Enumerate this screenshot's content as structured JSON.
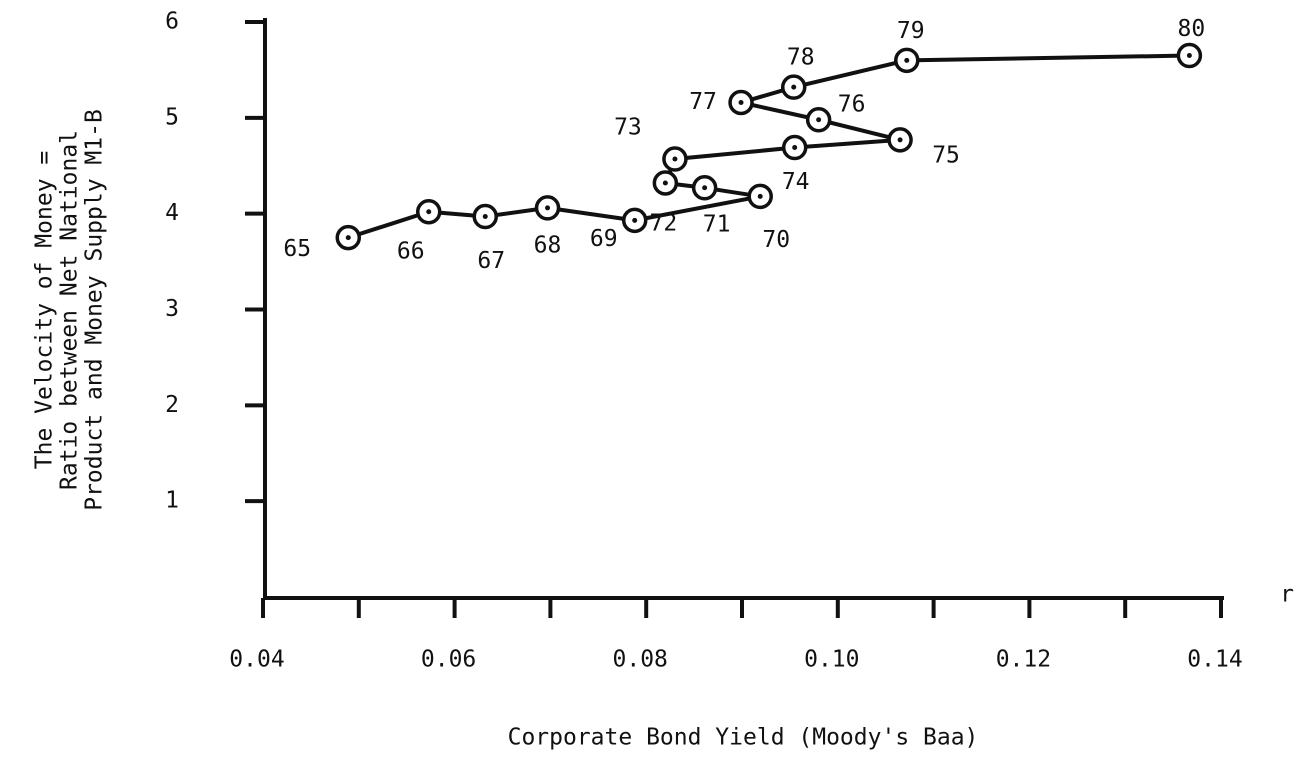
{
  "chart_data": {
    "type": "line",
    "x_label": "Corporate Bond Yield (Moody's Baa)",
    "y_label": [
      "The Velocity of Money =",
      "Ratio between Net National",
      "Product and Money Supply M1-B"
    ],
    "x_axis_symbol": "r",
    "point_labels": [
      "65",
      "66",
      "67",
      "68",
      "69",
      "70",
      "71",
      "72",
      "73",
      "74",
      "75",
      "76",
      "77",
      "78",
      "79",
      "80"
    ],
    "x": [
      0.0489,
      0.0573,
      0.0632,
      0.0697,
      0.0788,
      0.0919,
      0.0861,
      0.082,
      0.083,
      0.0955,
      0.1065,
      0.098,
      0.0899,
      0.0954,
      0.1072,
      0.1367
    ],
    "values": [
      3.75,
      4.02,
      3.97,
      4.06,
      3.93,
      4.18,
      4.27,
      4.32,
      4.57,
      4.69,
      4.77,
      4.98,
      5.16,
      5.32,
      5.6,
      5.65
    ],
    "color": "#111111",
    "xlim": [
      0.04,
      0.14
    ],
    "xticks": [
      0.04,
      0.06,
      0.08,
      {
        "value": 0.1,
        "label": "0.10"
      },
      0.12,
      0.14
    ],
    "xminor_ticks": [
      0.05,
      0.07,
      0.09,
      0.11,
      0.13
    ],
    "ylim": [
      0,
      6
    ],
    "yticks": [
      1,
      2,
      3,
      4,
      5,
      6
    ]
  }
}
